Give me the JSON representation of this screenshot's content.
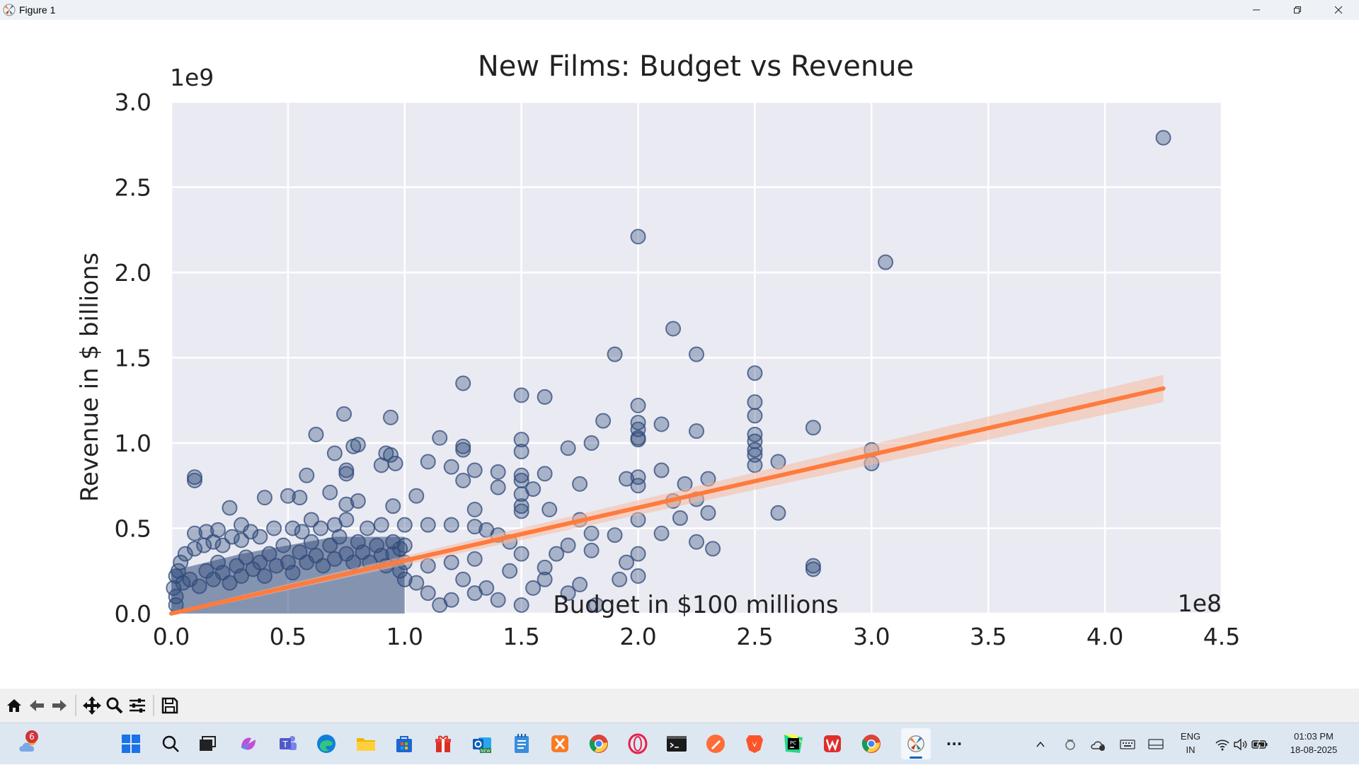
{
  "window": {
    "title": "Figure 1",
    "minimize_label": "–",
    "maximize_label": "❐",
    "close_label": "✕"
  },
  "chart_data": {
    "type": "scatter",
    "title": "New Films: Budget vs Revenue",
    "xlabel": "Budget in $100 millions",
    "ylabel": "Revenue in $ billions",
    "x_offset_label": "1e8",
    "y_offset_label": "1e9",
    "xlim": [
      0,
      4.5
    ],
    "ylim": [
      0,
      3.0
    ],
    "xticks": [
      0.0,
      0.5,
      1.0,
      1.5,
      2.0,
      2.5,
      3.0,
      3.5,
      4.0,
      4.5
    ],
    "yticks": [
      0.0,
      0.5,
      1.0,
      1.5,
      2.0,
      2.5,
      3.0
    ],
    "xtick_labels": [
      "0.0",
      "0.5",
      "1.0",
      "1.5",
      "2.0",
      "2.5",
      "3.0",
      "3.5",
      "4.0",
      "4.5"
    ],
    "ytick_labels": [
      "0.0",
      "0.5",
      "1.0",
      "1.5",
      "2.0",
      "2.5",
      "3.0"
    ],
    "grid": true,
    "colors": {
      "points": "#2f4a7a",
      "regression": "#ff7b3d",
      "band": "#f6b9a0",
      "background": "#eaeaf2"
    },
    "points": [
      [
        4.25,
        2.79
      ],
      [
        2.0,
        2.21
      ],
      [
        3.06,
        2.06
      ],
      [
        2.15,
        1.67
      ],
      [
        1.9,
        1.52
      ],
      [
        2.25,
        1.52
      ],
      [
        2.5,
        1.41
      ],
      [
        1.25,
        1.35
      ],
      [
        1.5,
        1.28
      ],
      [
        1.6,
        1.27
      ],
      [
        2.5,
        1.24
      ],
      [
        2.0,
        1.22
      ],
      [
        0.74,
        1.17
      ],
      [
        2.5,
        1.16
      ],
      [
        0.94,
        1.15
      ],
      [
        1.85,
        1.13
      ],
      [
        2.0,
        1.12
      ],
      [
        2.1,
        1.11
      ],
      [
        2.75,
        1.09
      ],
      [
        2.0,
        1.08
      ],
      [
        2.25,
        1.07
      ],
      [
        2.5,
        1.05
      ],
      [
        0.62,
        1.05
      ],
      [
        1.15,
        1.03
      ],
      [
        1.5,
        1.02
      ],
      [
        2.0,
        1.03
      ],
      [
        2.0,
        1.02
      ],
      [
        2.5,
        1.01
      ],
      [
        1.8,
        1.0
      ],
      [
        0.78,
        0.98
      ],
      [
        1.25,
        0.98
      ],
      [
        1.25,
        0.96
      ],
      [
        0.8,
        0.99
      ],
      [
        1.7,
        0.97
      ],
      [
        2.5,
        0.96
      ],
      [
        3.0,
        0.96
      ],
      [
        0.92,
        0.94
      ],
      [
        1.5,
        0.95
      ],
      [
        0.7,
        0.94
      ],
      [
        2.5,
        0.93
      ],
      [
        0.94,
        0.93
      ],
      [
        1.1,
        0.89
      ],
      [
        2.6,
        0.89
      ],
      [
        0.96,
        0.88
      ],
      [
        2.5,
        0.87
      ],
      [
        3.0,
        0.88
      ],
      [
        1.2,
        0.86
      ],
      [
        1.3,
        0.84
      ],
      [
        0.75,
        0.84
      ],
      [
        0.9,
        0.87
      ],
      [
        1.4,
        0.83
      ],
      [
        2.1,
        0.84
      ],
      [
        0.75,
        0.82
      ],
      [
        1.5,
        0.81
      ],
      [
        1.6,
        0.82
      ],
      [
        2.0,
        0.8
      ],
      [
        1.5,
        0.78
      ],
      [
        2.3,
        0.79
      ],
      [
        1.95,
        0.79
      ],
      [
        1.25,
        0.78
      ],
      [
        0.1,
        0.8
      ],
      [
        0.58,
        0.81
      ],
      [
        0.1,
        0.78
      ],
      [
        2.0,
        0.75
      ],
      [
        2.2,
        0.76
      ],
      [
        1.75,
        0.76
      ],
      [
        1.55,
        0.73
      ],
      [
        1.4,
        0.74
      ],
      [
        0.68,
        0.71
      ],
      [
        1.5,
        0.7
      ],
      [
        1.05,
        0.69
      ],
      [
        2.25,
        0.67
      ],
      [
        2.15,
        0.66
      ],
      [
        0.4,
        0.68
      ],
      [
        0.5,
        0.69
      ],
      [
        0.55,
        0.68
      ],
      [
        0.8,
        0.66
      ],
      [
        0.75,
        0.64
      ],
      [
        0.95,
        0.63
      ],
      [
        1.5,
        0.63
      ],
      [
        1.62,
        0.61
      ],
      [
        1.3,
        0.61
      ],
      [
        0.25,
        0.62
      ],
      [
        1.5,
        0.6
      ],
      [
        2.6,
        0.59
      ],
      [
        2.3,
        0.59
      ],
      [
        2.18,
        0.56
      ],
      [
        1.75,
        0.55
      ],
      [
        2.0,
        0.55
      ],
      [
        2.1,
        0.47
      ],
      [
        0.75,
        0.55
      ],
      [
        0.6,
        0.55
      ],
      [
        0.9,
        0.52
      ],
      [
        1.0,
        0.52
      ],
      [
        1.1,
        0.52
      ],
      [
        1.2,
        0.52
      ],
      [
        1.3,
        0.51
      ],
      [
        0.3,
        0.52
      ],
      [
        0.2,
        0.49
      ],
      [
        0.1,
        0.47
      ],
      [
        0.15,
        0.48
      ],
      [
        1.35,
        0.49
      ],
      [
        1.4,
        0.46
      ],
      [
        1.8,
        0.47
      ],
      [
        1.9,
        0.46
      ],
      [
        2.25,
        0.42
      ],
      [
        2.32,
        0.38
      ],
      [
        2.75,
        0.28
      ],
      [
        2.75,
        0.26
      ],
      [
        1.45,
        0.42
      ],
      [
        1.7,
        0.4
      ],
      [
        1.8,
        0.37
      ],
      [
        2.0,
        0.35
      ],
      [
        1.95,
        0.3
      ],
      [
        2.0,
        0.22
      ],
      [
        1.92,
        0.2
      ],
      [
        1.82,
        0.05
      ],
      [
        1.5,
        0.05
      ],
      [
        1.7,
        0.12
      ],
      [
        1.75,
        0.17
      ],
      [
        1.6,
        0.2
      ],
      [
        1.6,
        0.27
      ],
      [
        1.3,
        0.32
      ],
      [
        1.2,
        0.3
      ],
      [
        1.1,
        0.28
      ],
      [
        1.25,
        0.2
      ],
      [
        1.35,
        0.15
      ],
      [
        1.15,
        0.05
      ],
      [
        1.4,
        0.08
      ],
      [
        1.55,
        0.15
      ],
      [
        1.65,
        0.35
      ],
      [
        1.5,
        0.35
      ],
      [
        1.45,
        0.25
      ],
      [
        1.0,
        0.3
      ],
      [
        0.95,
        0.35
      ],
      [
        0.98,
        0.25
      ],
      [
        1.05,
        0.18
      ],
      [
        1.1,
        0.12
      ],
      [
        1.2,
        0.08
      ],
      [
        1.3,
        0.12
      ]
    ],
    "cluster_points": [
      [
        0.02,
        0.22
      ],
      [
        0.05,
        0.18
      ],
      [
        0.08,
        0.2
      ],
      [
        0.12,
        0.16
      ],
      [
        0.15,
        0.25
      ],
      [
        0.18,
        0.2
      ],
      [
        0.2,
        0.3
      ],
      [
        0.22,
        0.24
      ],
      [
        0.25,
        0.18
      ],
      [
        0.28,
        0.28
      ],
      [
        0.3,
        0.22
      ],
      [
        0.32,
        0.33
      ],
      [
        0.35,
        0.26
      ],
      [
        0.38,
        0.3
      ],
      [
        0.4,
        0.22
      ],
      [
        0.42,
        0.35
      ],
      [
        0.45,
        0.28
      ],
      [
        0.48,
        0.4
      ],
      [
        0.5,
        0.3
      ],
      [
        0.52,
        0.24
      ],
      [
        0.55,
        0.36
      ],
      [
        0.58,
        0.3
      ],
      [
        0.6,
        0.42
      ],
      [
        0.62,
        0.34
      ],
      [
        0.65,
        0.28
      ],
      [
        0.68,
        0.4
      ],
      [
        0.7,
        0.32
      ],
      [
        0.72,
        0.45
      ],
      [
        0.75,
        0.35
      ],
      [
        0.78,
        0.3
      ],
      [
        0.8,
        0.42
      ],
      [
        0.82,
        0.36
      ],
      [
        0.85,
        0.3
      ],
      [
        0.88,
        0.4
      ],
      [
        0.9,
        0.34
      ],
      [
        0.92,
        0.28
      ],
      [
        0.95,
        0.42
      ],
      [
        0.98,
        0.38
      ],
      [
        1.0,
        0.4
      ],
      [
        1.0,
        0.2
      ],
      [
        0.06,
        0.35
      ],
      [
        0.1,
        0.38
      ],
      [
        0.14,
        0.4
      ],
      [
        0.18,
        0.42
      ],
      [
        0.22,
        0.4
      ],
      [
        0.26,
        0.45
      ],
      [
        0.3,
        0.43
      ],
      [
        0.34,
        0.48
      ],
      [
        0.38,
        0.45
      ],
      [
        0.44,
        0.5
      ],
      [
        0.52,
        0.5
      ],
      [
        0.56,
        0.48
      ],
      [
        0.64,
        0.5
      ],
      [
        0.7,
        0.52
      ],
      [
        0.84,
        0.5
      ],
      [
        0.02,
        0.1
      ],
      [
        0.04,
        0.3
      ],
      [
        0.03,
        0.25
      ],
      [
        0.01,
        0.15
      ],
      [
        0.02,
        0.05
      ]
    ],
    "regression": {
      "x0": 0.0,
      "y0": 0.0,
      "x1": 4.25,
      "y1": 1.32,
      "band_half_width_end": 0.08
    }
  },
  "toolbar": {
    "icons": [
      "home-icon",
      "back-icon",
      "forward-icon",
      "pan-icon",
      "zoom-icon",
      "configure-subplots-icon",
      "save-icon"
    ]
  },
  "taskbar": {
    "weather_badge": "6",
    "language_line1": "ENG",
    "language_line2": "IN",
    "time": "01:03 PM",
    "date": "18-08-2025",
    "more_label": "···"
  }
}
